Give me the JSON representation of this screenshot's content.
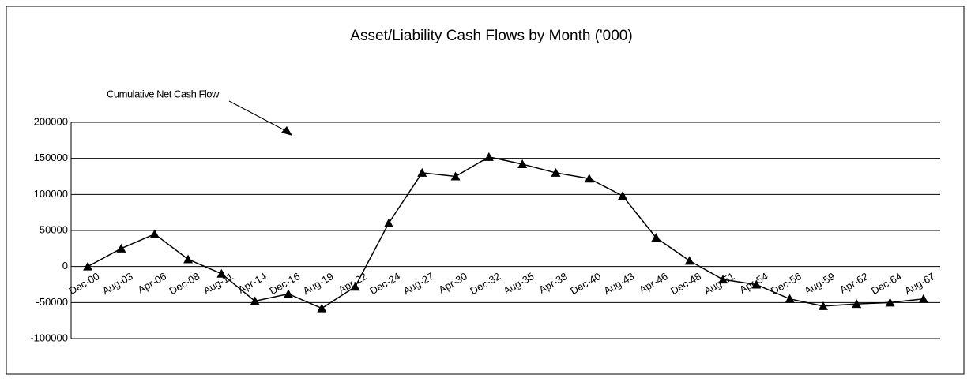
{
  "chart_data": {
    "type": "line",
    "title": "Asset/Liability Cash Flows by Month ('000)",
    "annotation": "Cumulative Net Cash Flow",
    "categories": [
      "Dec-00",
      "Aug-03",
      "Apr-06",
      "Dec-08",
      "Aug-11",
      "Apr-14",
      "Dec-16",
      "Aug-19",
      "Apr-22",
      "Dec-24",
      "Aug-27",
      "Apr-30",
      "Dec-32",
      "Aug-35",
      "Apr-38",
      "Dec-40",
      "Aug-43",
      "Apr-46",
      "Dec-48",
      "Aug-51",
      "Apr-54",
      "Dec-56",
      "Aug-59",
      "Apr-62",
      "Dec-64",
      "Aug-67"
    ],
    "series": [
      {
        "name": "Cumulative Net Cash Flow",
        "color": "#000000",
        "values": [
          0,
          25000,
          45000,
          10000,
          -10000,
          -48000,
          -38000,
          -58000,
          -28000,
          60000,
          130000,
          125000,
          152000,
          142000,
          130000,
          122000,
          98000,
          40000,
          8000,
          -18000,
          -25000,
          -45000,
          -55000,
          -52000,
          -50000,
          -45000
        ]
      }
    ],
    "ylim": [
      -100000,
      200000
    ],
    "yticks": [
      -100000,
      -50000,
      0,
      50000,
      100000,
      150000,
      200000
    ],
    "grid": true
  }
}
